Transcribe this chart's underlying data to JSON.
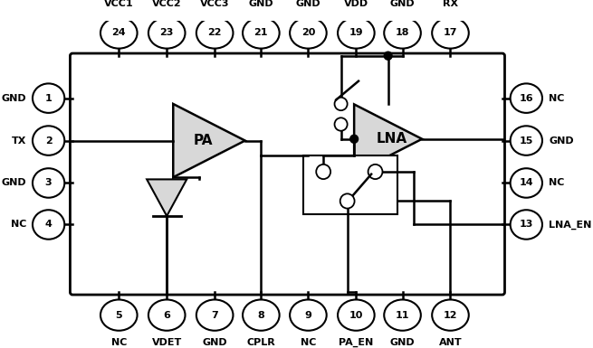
{
  "bg_color": "#ffffff",
  "top_pins": [
    {
      "num": 24,
      "label": "VCC1"
    },
    {
      "num": 23,
      "label": "VCC2"
    },
    {
      "num": 22,
      "label": "VCC3"
    },
    {
      "num": 21,
      "label": "GND"
    },
    {
      "num": 20,
      "label": "GND"
    },
    {
      "num": 19,
      "label": "VDD"
    },
    {
      "num": 18,
      "label": "GND"
    },
    {
      "num": 17,
      "label": "RX"
    }
  ],
  "bottom_pins": [
    {
      "num": 5,
      "label": "NC"
    },
    {
      "num": 6,
      "label": "VDET"
    },
    {
      "num": 7,
      "label": "GND"
    },
    {
      "num": 8,
      "label": "CPLR"
    },
    {
      "num": 9,
      "label": "NC"
    },
    {
      "num": 10,
      "label": "PA_EN"
    },
    {
      "num": 11,
      "label": "GND"
    },
    {
      "num": 12,
      "label": "ANT"
    }
  ],
  "left_pins": [
    {
      "num": 1,
      "label": "GND"
    },
    {
      "num": 2,
      "label": "TX"
    },
    {
      "num": 3,
      "label": "GND"
    },
    {
      "num": 4,
      "label": "NC"
    }
  ],
  "right_pins": [
    {
      "num": 16,
      "label": "NC"
    },
    {
      "num": 15,
      "label": "GND"
    },
    {
      "num": 14,
      "label": "NC"
    },
    {
      "num": 13,
      "label": "LNA_EN"
    }
  ]
}
